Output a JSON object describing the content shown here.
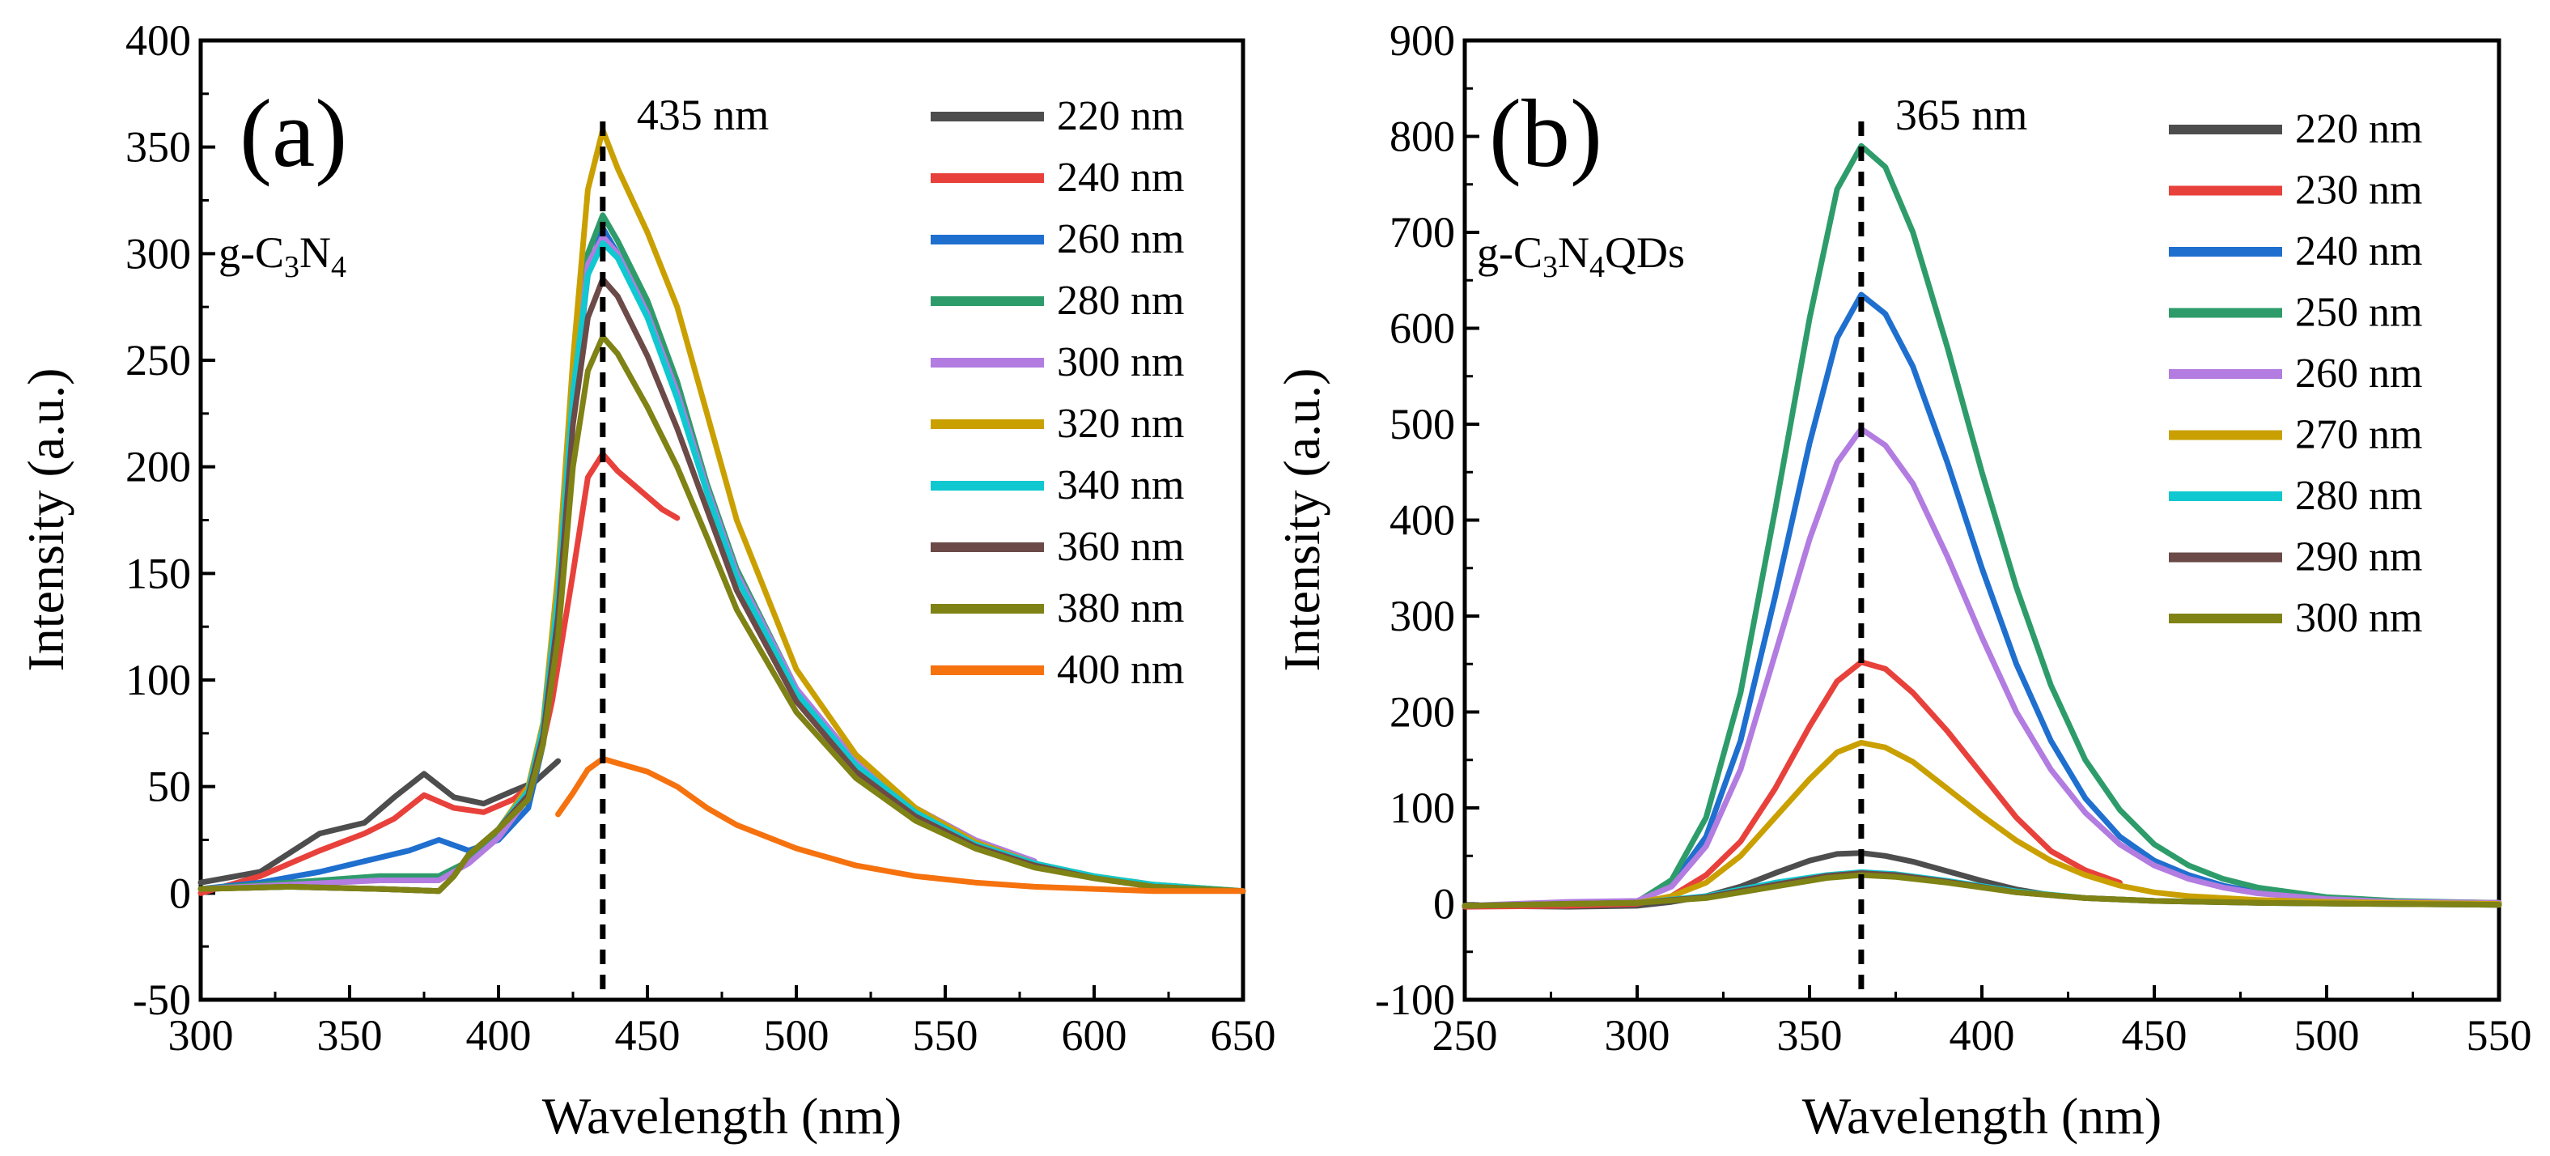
{
  "chart_data": [
    {
      "type": "line",
      "panel_label": "(a)",
      "sample_label": "g-C3N4",
      "xlabel": "Wavelength (nm)",
      "ylabel": "Intensity (a.u.)",
      "xlim": [
        300,
        650
      ],
      "ylim": [
        -50,
        400
      ],
      "xticks": [
        300,
        350,
        400,
        450,
        500,
        550,
        600,
        650
      ],
      "yticks": [
        -50,
        0,
        50,
        100,
        150,
        200,
        250,
        300,
        350,
        400
      ],
      "peak_line": {
        "x": 435,
        "label": "435 nm"
      },
      "legend": "top-right",
      "series": [
        {
          "name": "220 nm",
          "color": "#4d4d4d",
          "x": [
            300,
            320,
            340,
            355,
            365,
            375,
            385,
            395,
            405,
            412,
            420
          ],
          "y": [
            5,
            10,
            28,
            33,
            45,
            56,
            45,
            42,
            48,
            52,
            62
          ]
        },
        {
          "name": "240 nm",
          "color": "#e8413b",
          "x": [
            300,
            320,
            340,
            355,
            365,
            375,
            385,
            395,
            405,
            412,
            418,
            425,
            430,
            435,
            440,
            445,
            450,
            455,
            460
          ],
          "y": [
            0,
            8,
            20,
            28,
            35,
            46,
            40,
            38,
            44,
            52,
            90,
            150,
            195,
            206,
            198,
            192,
            186,
            180,
            176
          ]
        },
        {
          "name": "260 nm",
          "color": "#1f6fcf",
          "x": [
            300,
            320,
            340,
            355,
            370,
            380,
            390,
            400,
            410,
            415,
            420,
            425,
            430,
            435,
            440,
            450,
            460,
            470,
            480,
            500,
            520,
            540,
            560,
            580
          ],
          "y": [
            2,
            5,
            10,
            15,
            20,
            25,
            20,
            25,
            40,
            70,
            130,
            230,
            290,
            312,
            300,
            272,
            235,
            188,
            150,
            95,
            60,
            37,
            22,
            13
          ]
        },
        {
          "name": "280 nm",
          "color": "#2e9c6a",
          "x": [
            300,
            330,
            360,
            380,
            390,
            400,
            410,
            415,
            420,
            425,
            430,
            435,
            440,
            450,
            460,
            470,
            480,
            500,
            520,
            540,
            560,
            580
          ],
          "y": [
            2,
            5,
            8,
            8,
            15,
            27,
            45,
            75,
            140,
            240,
            300,
            318,
            306,
            278,
            240,
            192,
            152,
            96,
            61,
            38,
            23,
            14
          ]
        },
        {
          "name": "300 nm",
          "color": "#b27ce0",
          "x": [
            300,
            330,
            360,
            380,
            390,
            400,
            410,
            415,
            420,
            425,
            430,
            435,
            440,
            450,
            460,
            470,
            480,
            500,
            520,
            540,
            560,
            580
          ],
          "y": [
            2,
            4,
            6,
            6,
            14,
            26,
            45,
            75,
            140,
            235,
            295,
            308,
            300,
            272,
            235,
            190,
            150,
            96,
            62,
            40,
            25,
            15
          ]
        },
        {
          "name": "320 nm",
          "color": "#c9a000",
          "x": [
            300,
            330,
            360,
            380,
            385,
            390,
            400,
            410,
            415,
            420,
            425,
            430,
            435,
            440,
            450,
            460,
            470,
            480,
            500,
            520,
            540,
            560,
            580,
            600,
            620,
            650
          ],
          "y": [
            2,
            3,
            2,
            1,
            8,
            18,
            30,
            50,
            80,
            150,
            250,
            330,
            358,
            340,
            310,
            275,
            225,
            175,
            105,
            65,
            40,
            24,
            14,
            8,
            4,
            1
          ]
        },
        {
          "name": "340 nm",
          "color": "#10c8d0",
          "x": [
            300,
            330,
            360,
            380,
            385,
            390,
            400,
            410,
            415,
            420,
            425,
            430,
            435,
            440,
            450,
            460,
            470,
            480,
            500,
            520,
            540,
            560,
            580,
            600,
            620,
            650
          ],
          "y": [
            2,
            3,
            2,
            1,
            8,
            18,
            30,
            48,
            78,
            140,
            235,
            290,
            305,
            298,
            270,
            232,
            188,
            148,
            94,
            60,
            38,
            23,
            14,
            8,
            4,
            1
          ]
        },
        {
          "name": "360 nm",
          "color": "#6b4a48",
          "x": [
            300,
            330,
            360,
            380,
            385,
            390,
            400,
            410,
            415,
            420,
            425,
            430,
            435,
            440,
            450,
            460,
            470,
            480,
            500,
            520,
            540,
            560,
            580,
            600,
            620,
            650
          ],
          "y": [
            2,
            3,
            2,
            1,
            8,
            18,
            30,
            46,
            74,
            130,
            220,
            270,
            288,
            280,
            252,
            218,
            180,
            142,
            90,
            57,
            36,
            22,
            13,
            7,
            3,
            1
          ]
        },
        {
          "name": "380 nm",
          "color": "#7f8214",
          "x": [
            300,
            330,
            360,
            380,
            385,
            390,
            400,
            410,
            415,
            420,
            425,
            430,
            435,
            440,
            450,
            460,
            470,
            480,
            500,
            520,
            540,
            560,
            580,
            600,
            620,
            650
          ],
          "y": [
            2,
            3,
            2,
            1,
            8,
            18,
            30,
            44,
            70,
            120,
            200,
            245,
            261,
            253,
            228,
            200,
            167,
            133,
            85,
            54,
            34,
            21,
            12,
            7,
            3,
            1
          ]
        },
        {
          "name": "400 nm",
          "color": "#f5720f",
          "x": [
            420,
            425,
            430,
            435,
            440,
            450,
            460,
            470,
            480,
            500,
            520,
            540,
            560,
            580,
            600,
            620,
            650
          ],
          "y": [
            37,
            47,
            58,
            63,
            61,
            57,
            50,
            40,
            32,
            21,
            13,
            8,
            5,
            3,
            2,
            1,
            1
          ]
        }
      ]
    },
    {
      "type": "line",
      "panel_label": "(b)",
      "sample_label": "g-C3N4QDs",
      "xlabel": "Wavelength (nm)",
      "ylabel": "Intensity (a.u.)",
      "xlim": [
        250,
        550
      ],
      "ylim": [
        -100,
        900
      ],
      "xticks": [
        250,
        300,
        350,
        400,
        450,
        500,
        550
      ],
      "yticks": [
        -100,
        0,
        100,
        200,
        300,
        400,
        500,
        600,
        700,
        800,
        900
      ],
      "peak_line": {
        "x": 365,
        "label": "365 nm"
      },
      "legend": "top-right",
      "series": [
        {
          "name": "220 nm",
          "color": "#4d4d4d",
          "x": [
            250,
            280,
            300,
            310,
            320,
            330,
            340,
            350,
            358,
            365,
            372,
            380,
            390,
            400,
            410,
            420
          ],
          "y": [
            -2,
            -3,
            -2,
            2,
            8,
            18,
            32,
            45,
            52,
            53,
            50,
            44,
            34,
            24,
            15,
            9
          ]
        },
        {
          "name": "230 nm",
          "color": "#e8413b",
          "x": [
            250,
            280,
            300,
            310,
            320,
            330,
            340,
            350,
            358,
            365,
            372,
            380,
            390,
            400,
            410,
            420,
            430,
            440
          ],
          "y": [
            -3,
            -2,
            0,
            8,
            30,
            65,
            120,
            185,
            232,
            252,
            245,
            220,
            180,
            135,
            90,
            55,
            35,
            22
          ]
        },
        {
          "name": "240 nm",
          "color": "#1f6fcf",
          "x": [
            250,
            280,
            300,
            310,
            320,
            330,
            340,
            350,
            358,
            365,
            372,
            380,
            390,
            400,
            410,
            420,
            430,
            440,
            450,
            460,
            470,
            480,
            500,
            520,
            550
          ],
          "y": [
            -2,
            0,
            2,
            20,
            70,
            170,
            320,
            480,
            590,
            635,
            615,
            560,
            460,
            350,
            250,
            170,
            110,
            70,
            45,
            30,
            19,
            12,
            5,
            2,
            1
          ]
        },
        {
          "name": "250 nm",
          "color": "#2e9c6a",
          "x": [
            250,
            280,
            300,
            310,
            320,
            330,
            340,
            350,
            358,
            365,
            372,
            380,
            390,
            400,
            410,
            420,
            430,
            440,
            450,
            460,
            470,
            480,
            500,
            520,
            550
          ],
          "y": [
            -2,
            0,
            2,
            25,
            90,
            220,
            410,
            610,
            745,
            790,
            768,
            700,
            580,
            450,
            330,
            228,
            150,
            98,
            62,
            40,
            26,
            17,
            7,
            3,
            1
          ]
        },
        {
          "name": "260 nm",
          "color": "#b27ce0",
          "x": [
            250,
            280,
            300,
            310,
            320,
            330,
            340,
            350,
            358,
            365,
            372,
            380,
            390,
            400,
            410,
            420,
            430,
            440,
            450,
            460,
            470,
            480,
            500,
            520,
            550
          ],
          "y": [
            -2,
            2,
            3,
            18,
            60,
            140,
            260,
            380,
            460,
            495,
            478,
            438,
            362,
            278,
            200,
            140,
            95,
            62,
            40,
            26,
            17,
            11,
            5,
            2,
            1
          ]
        },
        {
          "name": "270 nm",
          "color": "#c9a000",
          "x": [
            250,
            280,
            300,
            310,
            320,
            330,
            340,
            350,
            358,
            365,
            372,
            380,
            390,
            400,
            410,
            420,
            430,
            440,
            450,
            460,
            480,
            500,
            520,
            550
          ],
          "y": [
            -2,
            0,
            1,
            8,
            22,
            50,
            90,
            130,
            158,
            168,
            163,
            148,
            120,
            92,
            66,
            45,
            30,
            19,
            12,
            8,
            4,
            2,
            1,
            0
          ]
        },
        {
          "name": "280 nm",
          "color": "#10c8d0",
          "x": [
            250,
            280,
            300,
            320,
            340,
            355,
            365,
            375,
            390,
            410,
            430,
            450,
            480,
            510,
            550
          ],
          "y": [
            -2,
            0,
            1,
            8,
            22,
            30,
            33,
            31,
            24,
            13,
            6,
            3,
            1,
            0,
            -1
          ]
        },
        {
          "name": "290 nm",
          "color": "#6b4a48",
          "x": [
            250,
            280,
            300,
            320,
            340,
            355,
            365,
            375,
            390,
            410,
            430,
            450,
            480,
            510,
            550
          ],
          "y": [
            -2,
            0,
            1,
            7,
            20,
            29,
            32,
            30,
            23,
            12,
            6,
            3,
            1,
            0,
            -1
          ]
        },
        {
          "name": "300 nm",
          "color": "#7f8214",
          "x": [
            250,
            280,
            300,
            320,
            340,
            355,
            365,
            375,
            390,
            410,
            430,
            450,
            480,
            510,
            550
          ],
          "y": [
            -2,
            0,
            1,
            6,
            18,
            27,
            30,
            28,
            22,
            12,
            6,
            3,
            1,
            0,
            -1
          ]
        }
      ]
    }
  ]
}
